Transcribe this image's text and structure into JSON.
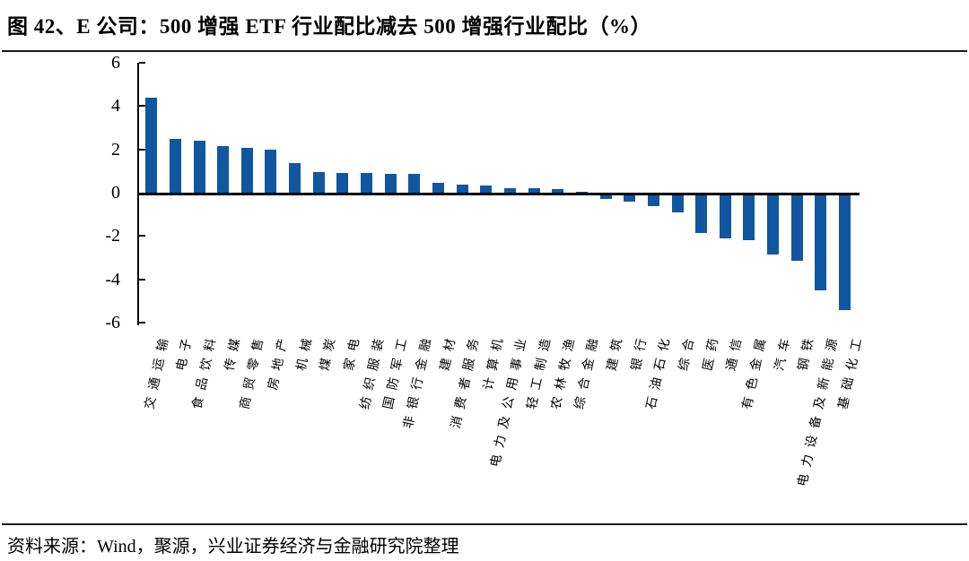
{
  "header": {
    "title": "图 42、E 公司：500 增强 ETF 行业配比减去 500 增强行业配比（%）"
  },
  "footer": {
    "source": "资料来源：Wind，聚源，兴业证券经济与金融研究院整理"
  },
  "colors": {
    "bar": "#1156A0",
    "axis": "#000000"
  },
  "chart_data": {
    "type": "bar",
    "title": "E 公司：500 增强 ETF 行业配比减去 500 增强行业配比（%）",
    "xlabel": "",
    "ylabel": "",
    "ylim": [
      -6,
      6
    ],
    "yticks": [
      6,
      4,
      2,
      0,
      -2,
      -4,
      -6
    ],
    "grid": false,
    "legend": "none",
    "categories": [
      "交通运输",
      "电子",
      "食品饮料",
      "传媒",
      "商贸零售",
      "房地产",
      "机械",
      "煤炭",
      "家电",
      "纺织服装",
      "国防军工",
      "非银行金融",
      "建材",
      "消费者服务",
      "计算机",
      "电力及公用事业",
      "轻工制造",
      "农林牧渔",
      "综合金融",
      "建筑",
      "银行",
      "石油石化",
      "综合",
      "医药",
      "通信",
      "有色金属",
      "汽车",
      "钢铁",
      "电力设备及新能源",
      "基础化工"
    ],
    "values": [
      4.4,
      2.5,
      2.4,
      2.15,
      2.05,
      2.0,
      1.35,
      0.95,
      0.9,
      0.9,
      0.88,
      0.85,
      0.45,
      0.38,
      0.35,
      0.2,
      0.2,
      0.15,
      0.05,
      -0.3,
      -0.4,
      -0.6,
      -0.9,
      -1.85,
      -2.1,
      -2.2,
      -2.85,
      -3.15,
      -4.5,
      -5.4
    ]
  }
}
